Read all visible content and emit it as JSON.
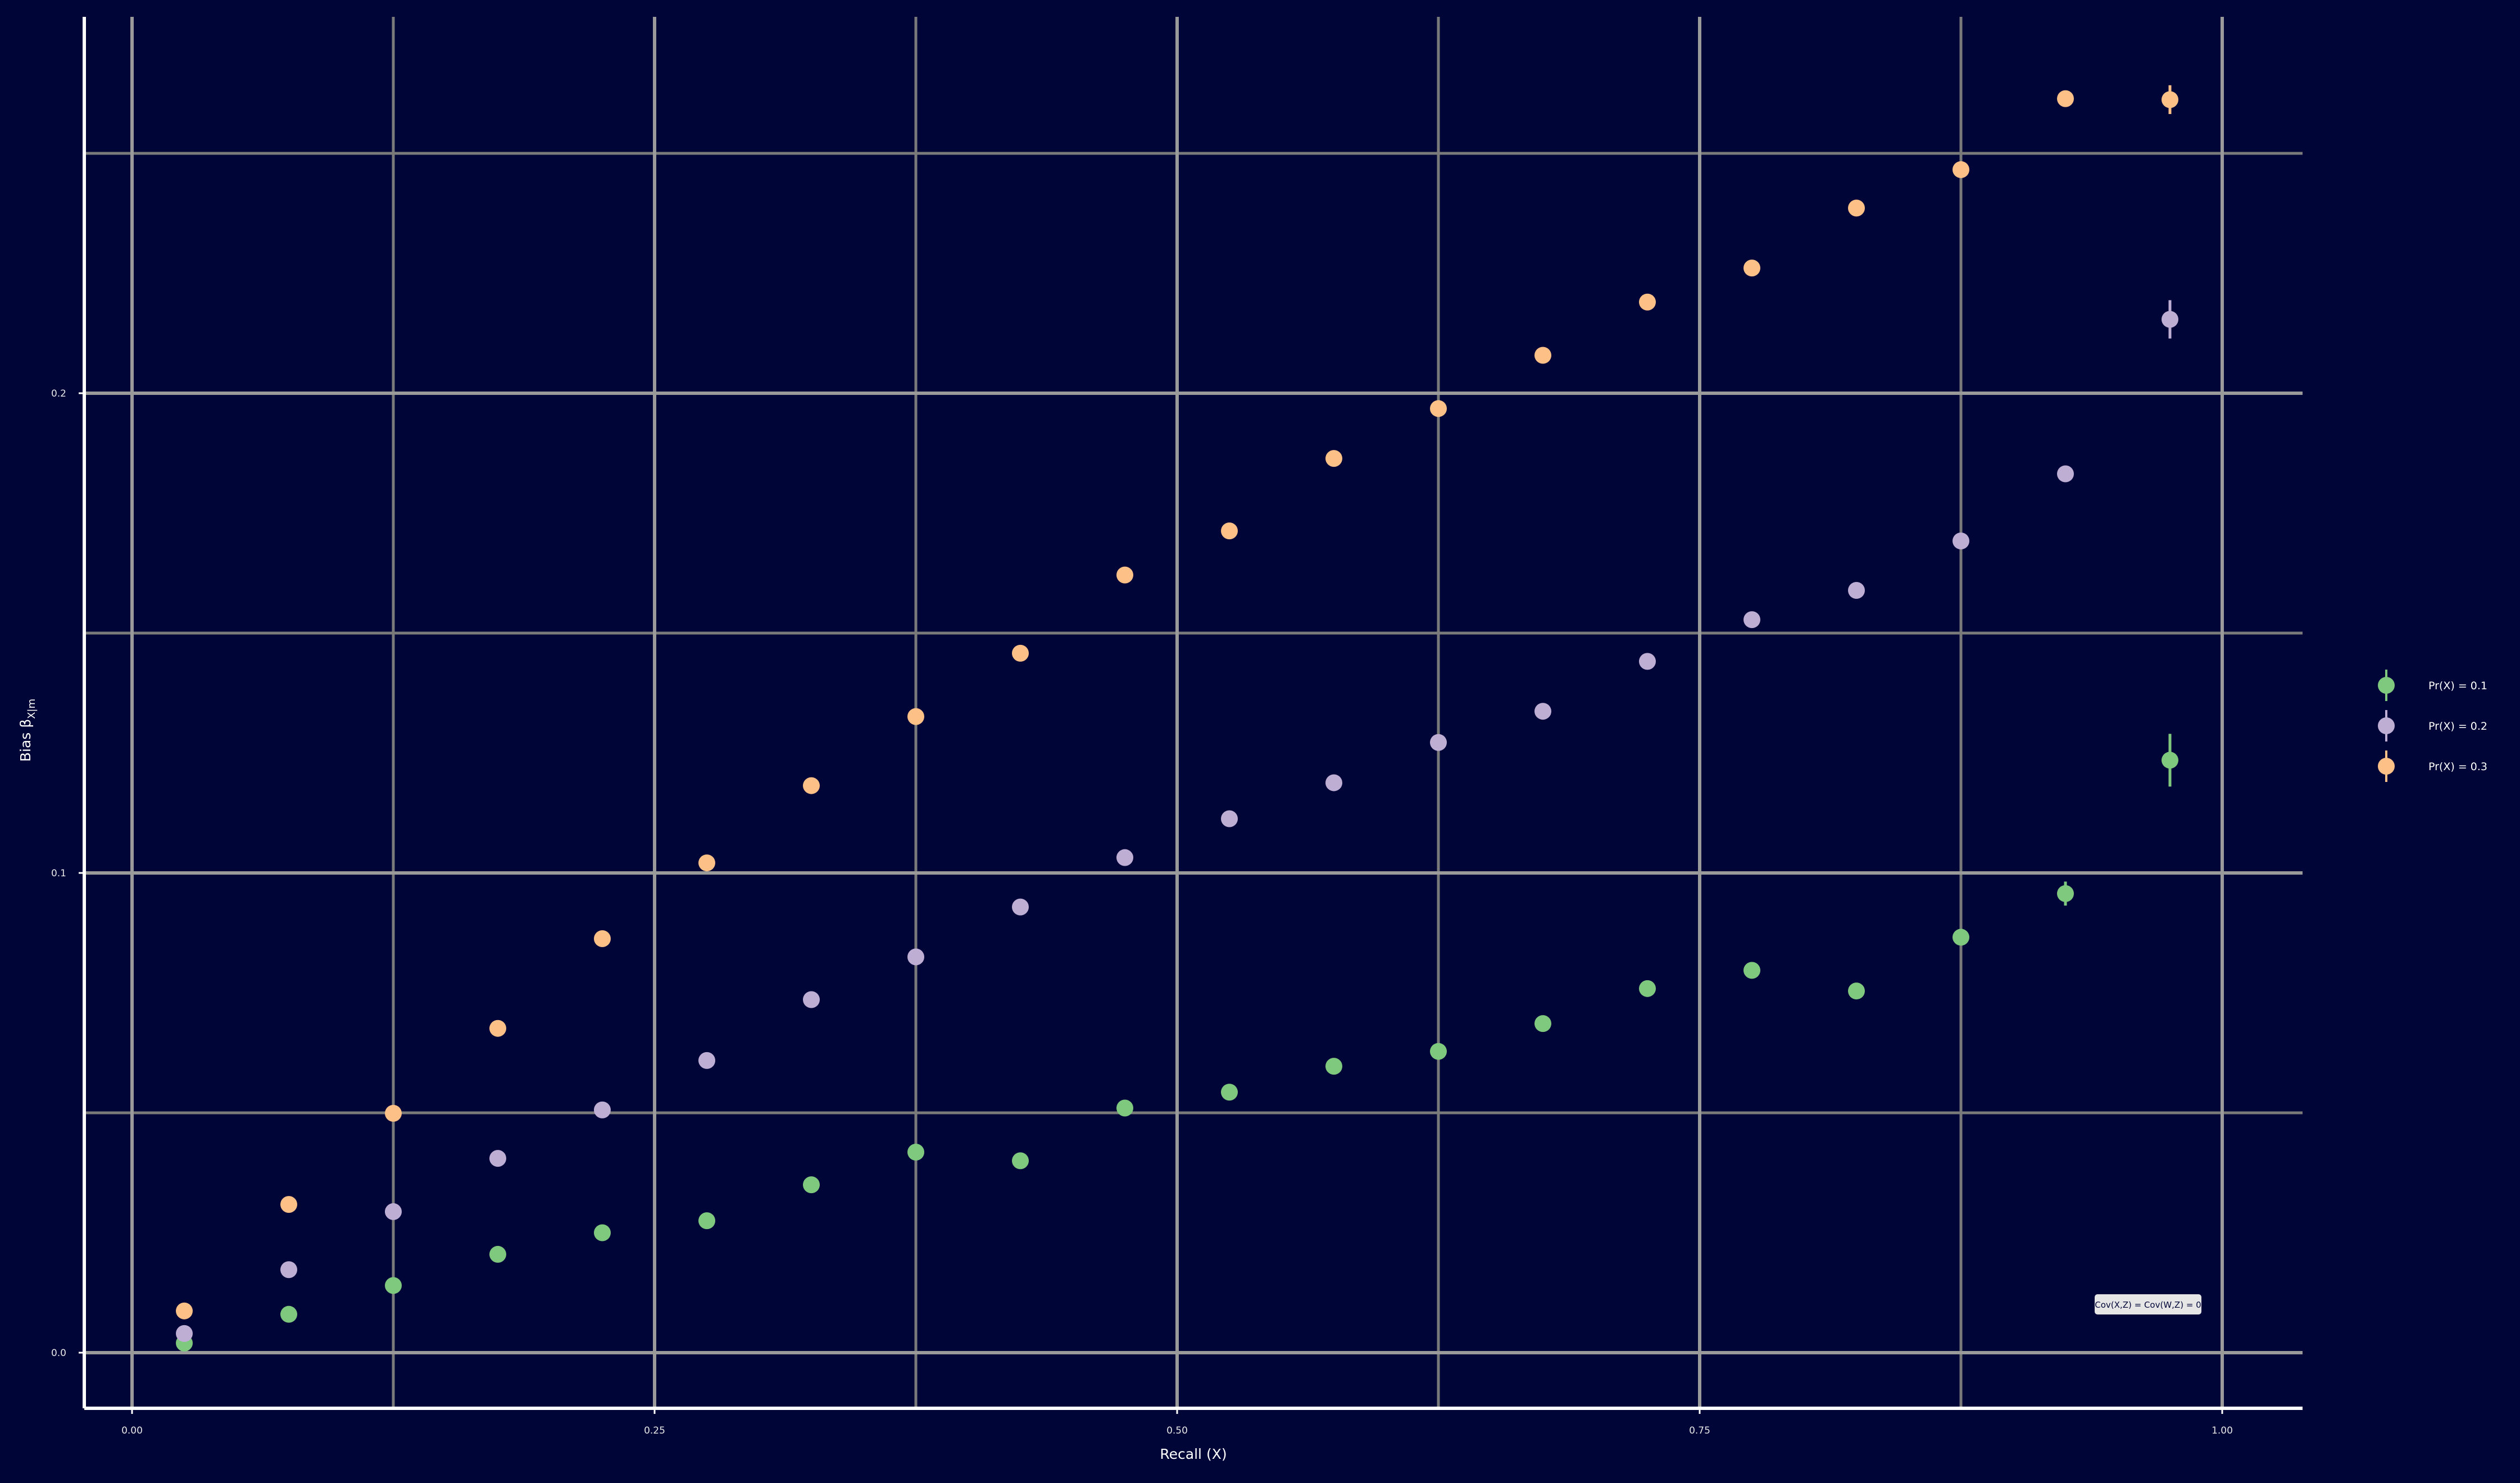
{
  "chart_data": {
    "type": "scatter",
    "xlabel": "Recall (X)",
    "ylabel": "Bias β",
    "ylabel_sub": "X|m",
    "xlim": [
      -0.023,
      1.038
    ],
    "ylim": [
      -0.012,
      0.278
    ],
    "x_ticks": [
      0.0,
      0.25,
      0.5,
      0.75,
      1.0
    ],
    "x_tick_labels": [
      "0.00",
      "0.25",
      "0.50",
      "0.75",
      "1.00"
    ],
    "x_minor_ticks": [
      0.125,
      0.375,
      0.625,
      0.875
    ],
    "y_ticks": [
      0.0,
      0.1,
      0.2
    ],
    "y_tick_labels": [
      "0.0",
      "0.1",
      "0.2"
    ],
    "y_minor_ticks": [
      0.05,
      0.15,
      0.25
    ],
    "grid": true,
    "legend_position": "right",
    "annotation": "Cov(X,Z) = Cov(W,Z) = 0",
    "x": [
      0.025,
      0.075,
      0.125,
      0.175,
      0.225,
      0.275,
      0.325,
      0.375,
      0.425,
      0.475,
      0.525,
      0.575,
      0.625,
      0.675,
      0.725,
      0.775,
      0.825,
      0.875,
      0.925,
      0.975
    ],
    "series": [
      {
        "name": "Pr(X) = 0.1",
        "color": "#7fc97f",
        "values": [
          0.002,
          0.008,
          0.014,
          0.0205,
          0.025,
          0.0275,
          0.035,
          0.0418,
          0.04,
          0.051,
          0.0543,
          0.0597,
          0.0628,
          0.0686,
          0.0759,
          0.0797,
          0.0754,
          0.0866,
          0.0957,
          0.1235
        ],
        "errors": [
          0,
          0,
          0,
          0,
          0,
          0,
          0,
          0,
          0,
          0,
          0,
          0,
          0,
          0,
          0,
          0,
          0,
          0,
          0.0025,
          0.0055
        ]
      },
      {
        "name": "Pr(X) = 0.2",
        "color": "#beaed4",
        "values": [
          0.004,
          0.0173,
          0.0294,
          0.0405,
          0.0506,
          0.0609,
          0.0736,
          0.0825,
          0.0929,
          0.1032,
          0.1113,
          0.1188,
          0.1272,
          0.1337,
          0.1441,
          0.1528,
          0.1589,
          0.1692,
          0.1832,
          0.2154
        ],
        "errors": [
          0,
          0,
          0,
          0,
          0,
          0,
          0,
          0,
          0,
          0,
          0,
          0,
          0,
          0,
          0,
          0,
          0,
          0,
          0.0015,
          0.004
        ]
      },
      {
        "name": "Pr(X) = 0.3",
        "color": "#fdc086",
        "values": [
          0.0087,
          0.0309,
          0.0499,
          0.0676,
          0.0863,
          0.1021,
          0.1182,
          0.1326,
          0.1458,
          0.1621,
          0.1713,
          0.1864,
          0.1968,
          0.2079,
          0.219,
          0.2261,
          0.2386,
          0.2466,
          0.2614,
          0.2612
        ],
        "errors": [
          0,
          0,
          0,
          0,
          0,
          0,
          0,
          0,
          0,
          0,
          0,
          0,
          0,
          0,
          0,
          0,
          0,
          0,
          0,
          0.003
        ]
      }
    ]
  },
  "style": {
    "background": "#000538",
    "major_grid": "#9a9a9a",
    "minor_grid": "#7a7a7a",
    "axis_line": "#ffffff"
  }
}
